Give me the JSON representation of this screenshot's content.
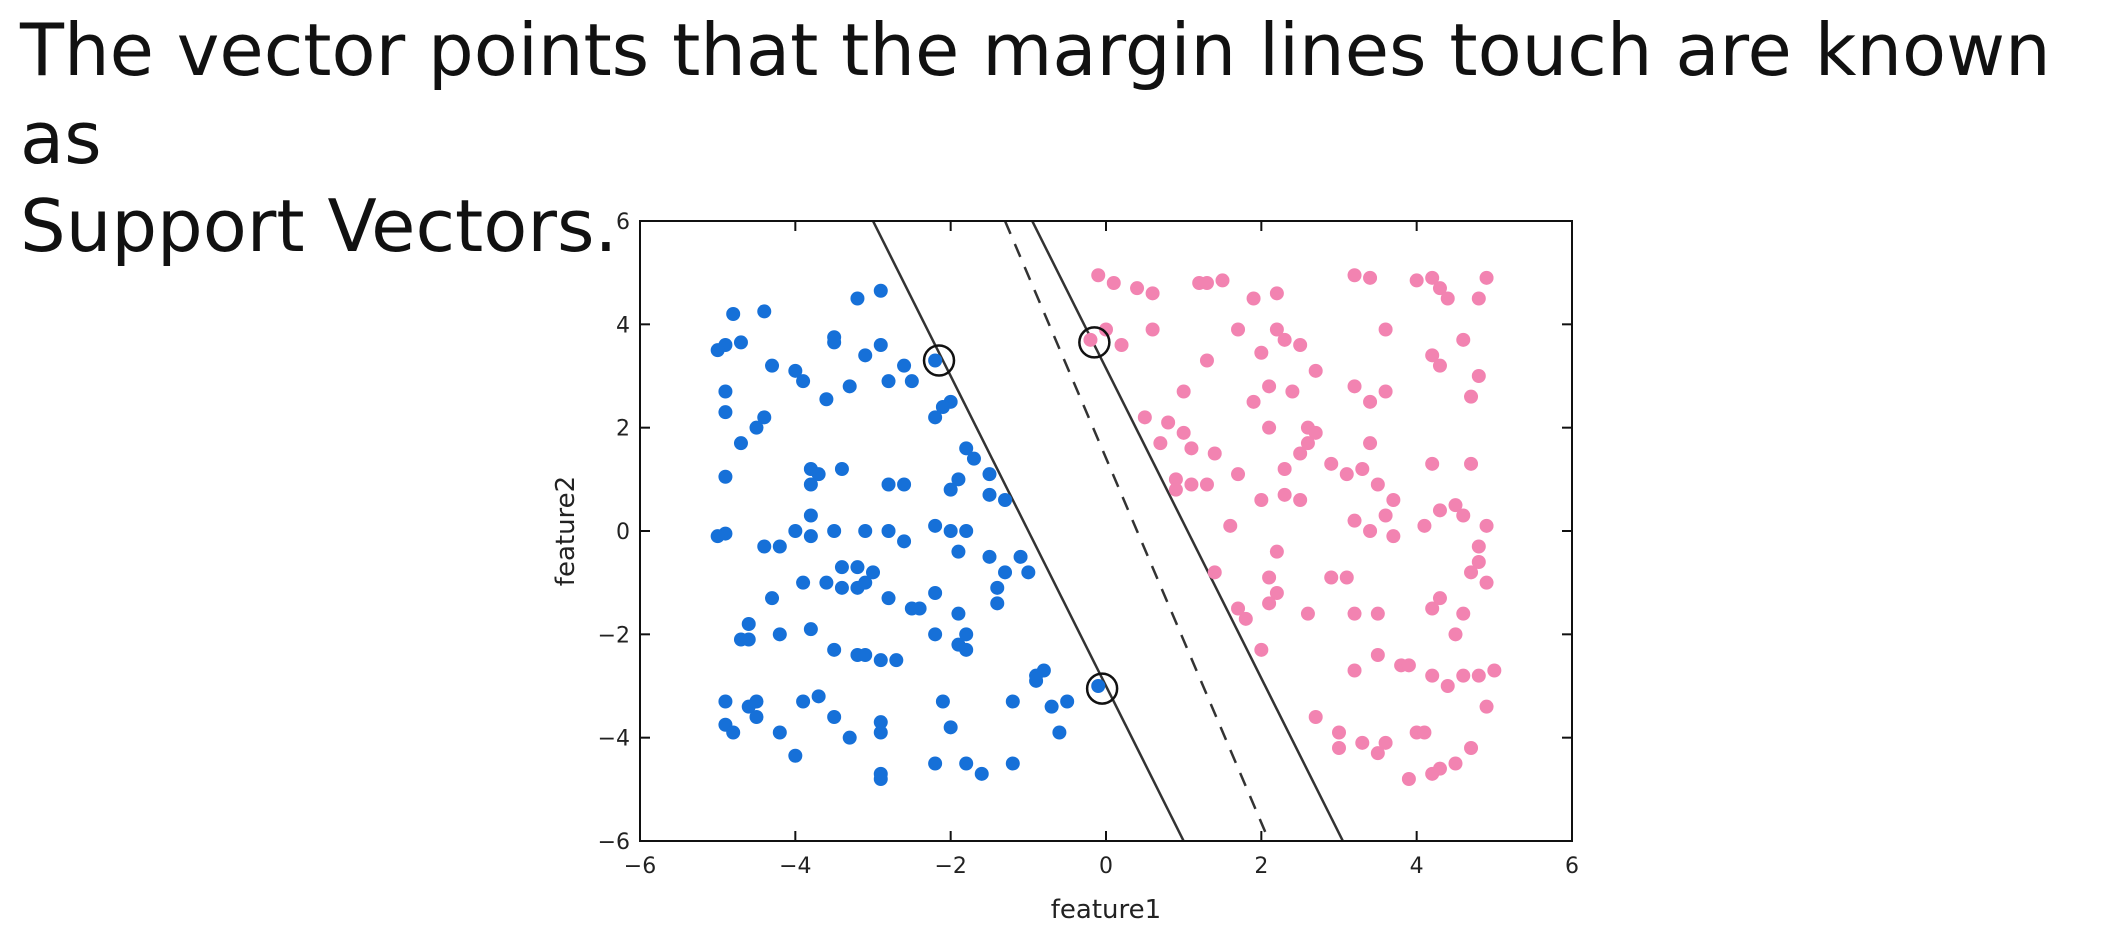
{
  "slide": {
    "line1": "The vector points that the margin lines touch are known as",
    "line2": "Support Vectors."
  },
  "chart_data": {
    "type": "scatter",
    "title": "",
    "xlabel": "feature1",
    "ylabel": "feature2",
    "xlim": [
      -6,
      6
    ],
    "ylim": [
      -6,
      6
    ],
    "xticks": [
      -6,
      -4,
      -2,
      0,
      2,
      4,
      6
    ],
    "yticks": [
      -6,
      -4,
      -2,
      0,
      2,
      4,
      6
    ],
    "grid": false,
    "legend": "none",
    "series": [
      {
        "color": "#1670d8",
        "points": [
          [
            -4.8,
            4.2
          ],
          [
            -4.4,
            4.25
          ],
          [
            -4.9,
            3.6
          ],
          [
            -4.7,
            3.65
          ],
          [
            -5.0,
            3.5
          ],
          [
            -4.3,
            3.2
          ],
          [
            -4.0,
            3.1
          ],
          [
            -3.9,
            2.9
          ],
          [
            -4.9,
            2.7
          ],
          [
            -4.9,
            2.3
          ],
          [
            -4.4,
            2.2
          ],
          [
            -4.5,
            2.0
          ],
          [
            -4.7,
            1.7
          ],
          [
            -4.9,
            1.05
          ],
          [
            -3.2,
            4.5
          ],
          [
            -2.9,
            4.65
          ],
          [
            -3.5,
            3.75
          ],
          [
            -3.5,
            3.65
          ],
          [
            -3.1,
            3.4
          ],
          [
            -2.9,
            3.6
          ],
          [
            -2.6,
            3.2
          ],
          [
            -3.3,
            2.8
          ],
          [
            -2.8,
            2.9
          ],
          [
            -3.6,
            2.55
          ],
          [
            -2.5,
            2.9
          ],
          [
            -2.2,
            3.3
          ],
          [
            -2.0,
            2.5
          ],
          [
            -2.1,
            2.4
          ],
          [
            -2.2,
            2.2
          ],
          [
            -1.8,
            1.6
          ],
          [
            -1.7,
            1.4
          ],
          [
            -3.8,
            1.2
          ],
          [
            -3.7,
            1.1
          ],
          [
            -3.4,
            1.2
          ],
          [
            -3.8,
            0.9
          ],
          [
            -2.8,
            0.9
          ],
          [
            -2.6,
            0.9
          ],
          [
            -2.0,
            0.8
          ],
          [
            -1.9,
            1.0
          ],
          [
            -1.5,
            1.1
          ],
          [
            -1.5,
            0.7
          ],
          [
            -1.3,
            0.6
          ],
          [
            -3.8,
            0.3
          ],
          [
            -4.0,
            0.0
          ],
          [
            -3.8,
            -0.1
          ],
          [
            -3.5,
            0.0
          ],
          [
            -3.1,
            0.0
          ],
          [
            -2.8,
            0.0
          ],
          [
            -2.2,
            0.1
          ],
          [
            -2.0,
            0.0
          ],
          [
            -1.8,
            0.0
          ],
          [
            -4.9,
            -0.05
          ],
          [
            -5.0,
            -0.1
          ],
          [
            -4.4,
            -0.3
          ],
          [
            -4.2,
            -0.3
          ],
          [
            -3.4,
            -0.7
          ],
          [
            -3.2,
            -0.7
          ],
          [
            -3.0,
            -0.8
          ],
          [
            -2.6,
            -0.2
          ],
          [
            -1.9,
            -0.4
          ],
          [
            -1.5,
            -0.5
          ],
          [
            -1.1,
            -0.5
          ],
          [
            -1.0,
            -0.8
          ],
          [
            -1.3,
            -0.8
          ],
          [
            -3.9,
            -1.0
          ],
          [
            -3.6,
            -1.0
          ],
          [
            -3.4,
            -1.1
          ],
          [
            -3.2,
            -1.1
          ],
          [
            -3.1,
            -1.0
          ],
          [
            -4.3,
            -1.3
          ],
          [
            -2.8,
            -1.3
          ],
          [
            -2.5,
            -1.5
          ],
          [
            -2.4,
            -1.5
          ],
          [
            -2.2,
            -1.2
          ],
          [
            -1.9,
            -1.6
          ],
          [
            -1.4,
            -1.4
          ],
          [
            -1.4,
            -1.1
          ],
          [
            -1.8,
            -2.0
          ],
          [
            -2.2,
            -2.0
          ],
          [
            -4.6,
            -1.8
          ],
          [
            -4.6,
            -2.1
          ],
          [
            -4.7,
            -2.1
          ],
          [
            -4.2,
            -2.0
          ],
          [
            -3.8,
            -1.9
          ],
          [
            -3.5,
            -2.3
          ],
          [
            -3.2,
            -2.4
          ],
          [
            -3.1,
            -2.4
          ],
          [
            -2.9,
            -2.5
          ],
          [
            -2.7,
            -2.5
          ],
          [
            -1.8,
            -2.3
          ],
          [
            -1.9,
            -2.2
          ],
          [
            -0.9,
            -2.8
          ],
          [
            -0.8,
            -2.7
          ],
          [
            -0.9,
            -2.9
          ],
          [
            -4.9,
            -3.3
          ],
          [
            -4.6,
            -3.4
          ],
          [
            -4.5,
            -3.3
          ],
          [
            -4.5,
            -3.6
          ],
          [
            -4.9,
            -3.75
          ],
          [
            -4.8,
            -3.9
          ],
          [
            -4.2,
            -3.9
          ],
          [
            -4.0,
            -4.35
          ],
          [
            -3.9,
            -3.3
          ],
          [
            -3.7,
            -3.2
          ],
          [
            -3.5,
            -3.6
          ],
          [
            -3.3,
            -4.0
          ],
          [
            -2.9,
            -3.7
          ],
          [
            -2.9,
            -3.9
          ],
          [
            -2.1,
            -3.3
          ],
          [
            -2.0,
            -3.8
          ],
          [
            -1.2,
            -3.3
          ],
          [
            -1.2,
            -4.5
          ],
          [
            -0.7,
            -3.4
          ],
          [
            -0.5,
            -3.3
          ],
          [
            -0.1,
            -3.0
          ],
          [
            -0.6,
            -3.9
          ],
          [
            -2.2,
            -4.5
          ],
          [
            -1.8,
            -4.5
          ],
          [
            -1.6,
            -4.7
          ],
          [
            -2.9,
            -4.8
          ],
          [
            -2.9,
            -4.7
          ]
        ]
      },
      {
        "color": "#f283b1",
        "points": [
          [
            -0.1,
            4.95
          ],
          [
            0.1,
            4.8
          ],
          [
            0.4,
            4.7
          ],
          [
            0.6,
            4.6
          ],
          [
            1.2,
            4.8
          ],
          [
            1.3,
            4.8
          ],
          [
            1.5,
            4.85
          ],
          [
            1.9,
            4.5
          ],
          [
            2.2,
            4.6
          ],
          [
            3.2,
            4.95
          ],
          [
            3.4,
            4.9
          ],
          [
            4.0,
            4.85
          ],
          [
            4.2,
            4.9
          ],
          [
            4.3,
            4.7
          ],
          [
            4.4,
            4.5
          ],
          [
            4.9,
            4.9
          ],
          [
            4.8,
            4.5
          ],
          [
            0.0,
            3.9
          ],
          [
            0.6,
            3.9
          ],
          [
            1.7,
            3.9
          ],
          [
            2.2,
            3.9
          ],
          [
            3.6,
            3.9
          ],
          [
            -0.2,
            3.7
          ],
          [
            0.2,
            3.6
          ],
          [
            2.3,
            3.7
          ],
          [
            2.0,
            3.45
          ],
          [
            2.5,
            3.6
          ],
          [
            4.2,
            3.4
          ],
          [
            4.6,
            3.7
          ],
          [
            4.3,
            3.2
          ],
          [
            1.3,
            3.3
          ],
          [
            2.7,
            3.1
          ],
          [
            3.2,
            2.8
          ],
          [
            3.4,
            2.5
          ],
          [
            3.6,
            2.7
          ],
          [
            4.8,
            3.0
          ],
          [
            4.7,
            2.6
          ],
          [
            1.0,
            2.7
          ],
          [
            2.1,
            2.8
          ],
          [
            2.4,
            2.7
          ],
          [
            1.9,
            2.5
          ],
          [
            0.5,
            2.2
          ],
          [
            0.8,
            2.1
          ],
          [
            1.0,
            1.9
          ],
          [
            1.4,
            1.5
          ],
          [
            2.1,
            2.0
          ],
          [
            2.6,
            2.0
          ],
          [
            2.7,
            1.9
          ],
          [
            3.4,
            1.7
          ],
          [
            2.6,
            1.7
          ],
          [
            0.7,
            1.7
          ],
          [
            1.1,
            1.6
          ],
          [
            2.5,
            1.5
          ],
          [
            2.9,
            1.3
          ],
          [
            3.1,
            1.1
          ],
          [
            3.3,
            1.2
          ],
          [
            4.2,
            1.3
          ],
          [
            4.7,
            1.3
          ],
          [
            0.9,
            1.0
          ],
          [
            1.1,
            0.9
          ],
          [
            1.3,
            0.9
          ],
          [
            1.7,
            1.1
          ],
          [
            2.3,
            1.2
          ],
          [
            3.5,
            0.9
          ],
          [
            2.3,
            0.7
          ],
          [
            2.5,
            0.6
          ],
          [
            2.0,
            0.6
          ],
          [
            3.7,
            0.6
          ],
          [
            3.6,
            0.3
          ],
          [
            4.5,
            0.5
          ],
          [
            4.3,
            0.4
          ],
          [
            0.9,
            0.8
          ],
          [
            1.6,
            0.1
          ],
          [
            3.2,
            0.2
          ],
          [
            3.4,
            0.0
          ],
          [
            3.7,
            -0.1
          ],
          [
            4.8,
            -0.3
          ],
          [
            4.9,
            0.1
          ],
          [
            4.1,
            0.1
          ],
          [
            4.6,
            0.3
          ],
          [
            1.4,
            -0.8
          ],
          [
            2.2,
            -0.4
          ],
          [
            2.1,
            -0.9
          ],
          [
            2.9,
            -0.9
          ],
          [
            3.1,
            -0.9
          ],
          [
            4.8,
            -0.6
          ],
          [
            4.7,
            -0.8
          ],
          [
            4.9,
            -1.0
          ],
          [
            1.7,
            -1.5
          ],
          [
            1.8,
            -1.7
          ],
          [
            2.0,
            -2.3
          ],
          [
            2.2,
            -1.2
          ],
          [
            2.1,
            -1.4
          ],
          [
            2.6,
            -1.6
          ],
          [
            3.2,
            -1.6
          ],
          [
            3.5,
            -1.6
          ],
          [
            4.3,
            -1.3
          ],
          [
            4.2,
            -1.5
          ],
          [
            4.6,
            -1.6
          ],
          [
            4.5,
            -2.0
          ],
          [
            3.2,
            -2.7
          ],
          [
            3.5,
            -2.4
          ],
          [
            3.8,
            -2.6
          ],
          [
            3.9,
            -2.6
          ],
          [
            4.2,
            -2.8
          ],
          [
            4.4,
            -3.0
          ],
          [
            4.6,
            -2.8
          ],
          [
            4.8,
            -2.8
          ],
          [
            5.0,
            -2.7
          ],
          [
            4.9,
            -3.4
          ],
          [
            2.7,
            -3.6
          ],
          [
            3.0,
            -3.9
          ],
          [
            3.0,
            -4.2
          ],
          [
            3.3,
            -4.1
          ],
          [
            3.5,
            -4.3
          ],
          [
            3.6,
            -4.1
          ],
          [
            3.9,
            -4.8
          ],
          [
            4.0,
            -3.9
          ],
          [
            4.1,
            -3.9
          ],
          [
            4.2,
            -4.7
          ],
          [
            4.3,
            -4.6
          ],
          [
            4.5,
            -4.5
          ],
          [
            4.7,
            -4.2
          ]
        ]
      }
    ],
    "decision_boundary": [
      [
        -1.3,
        6.0
      ],
      [
        2.1,
        -6.0
      ]
    ],
    "margin_lines": [
      [
        [
          -3.0,
          6.0
        ],
        [
          1.0,
          -6.0
        ]
      ],
      [
        [
          -0.95,
          6.0
        ],
        [
          3.05,
          -6.0
        ]
      ]
    ],
    "support_vectors": [
      [
        -2.15,
        3.3
      ],
      [
        -0.15,
        3.65
      ],
      [
        -0.05,
        -3.05
      ]
    ]
  }
}
